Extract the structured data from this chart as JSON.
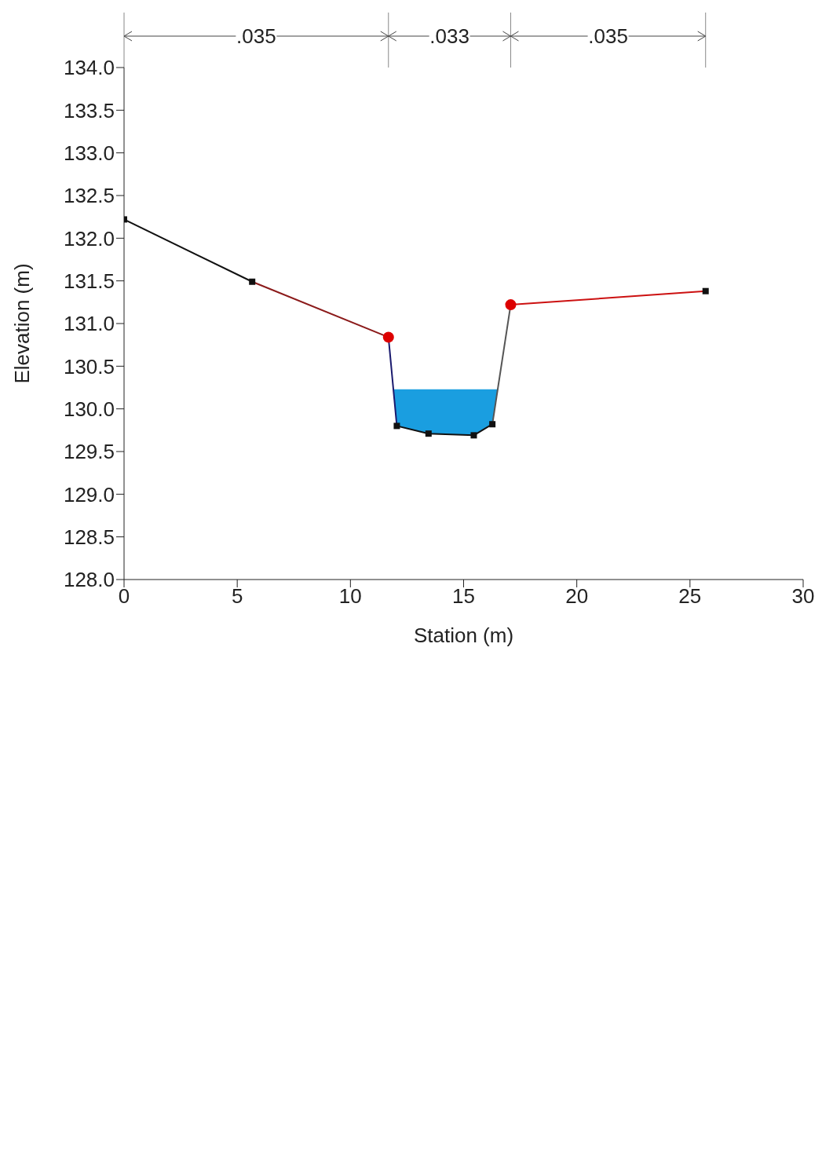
{
  "chart_data": {
    "type": "line",
    "xlabel": "Station (m)",
    "ylabel": "Elevation (m)",
    "xlim": [
      0,
      30
    ],
    "xticks": [
      0,
      5,
      10,
      15,
      20,
      25,
      30
    ],
    "ylim": [
      128,
      134
    ],
    "yticks": [
      {
        "value": 128,
        "label": "128.0"
      },
      {
        "value": 128.5,
        "label": "128.5"
      },
      {
        "value": 129,
        "label": "129.0"
      },
      {
        "value": 129.5,
        "label": "129.5"
      },
      {
        "value": 130,
        "label": "130.0"
      },
      {
        "value": 130.5,
        "label": "130.5"
      },
      {
        "value": 131,
        "label": "131.0"
      },
      {
        "value": 131.5,
        "label": "131.5"
      },
      {
        "value": 132,
        "label": "132.0"
      },
      {
        "value": 132.5,
        "label": "132.5"
      },
      {
        "value": 133,
        "label": "133.0"
      },
      {
        "value": 133.5,
        "label": "133.5"
      },
      {
        "value": 134,
        "label": "134.0"
      }
    ],
    "grid": false,
    "marker": "none",
    "line_style": "solid",
    "annotations": [
      ".035",
      ".033",
      ".035"
    ],
    "series": [
      {
        "color": "#1a9ee0",
        "x": [
          11.9,
          12.05,
          13.45,
          15.45,
          16.27,
          16.5
        ],
        "values": [
          130.22,
          130.22,
          130.22,
          130.22,
          130.22,
          130.22
        ],
        "lower": [
          130.22,
          129.8,
          129.71,
          129.69,
          129.82,
          130.22
        ],
        "upper": [
          130.22,
          130.22,
          130.22,
          130.22,
          130.22,
          130.22
        ]
      },
      {
        "color": "#111111",
        "x": [
          0,
          5.66
        ],
        "values": [
          132.22,
          131.49
        ]
      },
      {
        "color": "#8b1a1a",
        "x": [
          5.66,
          11.68
        ],
        "values": [
          131.49,
          130.84
        ]
      },
      {
        "color": "#1a1a6e",
        "x": [
          11.68,
          12.05
        ],
        "values": [
          130.84,
          129.8
        ]
      },
      {
        "color": "#111111",
        "x": [
          12.05,
          13.45,
          15.45,
          16.27
        ],
        "values": [
          129.8,
          129.71,
          129.69,
          129.82
        ]
      },
      {
        "color": "#555555",
        "x": [
          16.27,
          17.08
        ],
        "values": [
          129.82,
          131.22
        ]
      },
      {
        "color": "#cc1111",
        "x": [
          17.08,
          25.69
        ],
        "values": [
          131.22,
          131.38
        ]
      },
      {
        "type": "scatter",
        "marker": "square",
        "color": "#111111",
        "x": [
          0,
          5.66,
          12.05,
          13.45,
          15.45,
          16.27,
          25.69
        ],
        "values": [
          132.22,
          131.49,
          129.8,
          129.71,
          129.69,
          129.82,
          131.38
        ]
      },
      {
        "type": "scatter",
        "marker": "circle",
        "color": "#dd0000",
        "x": [
          11.68,
          17.08
        ],
        "values": [
          130.84,
          131.22
        ]
      }
    ]
  }
}
